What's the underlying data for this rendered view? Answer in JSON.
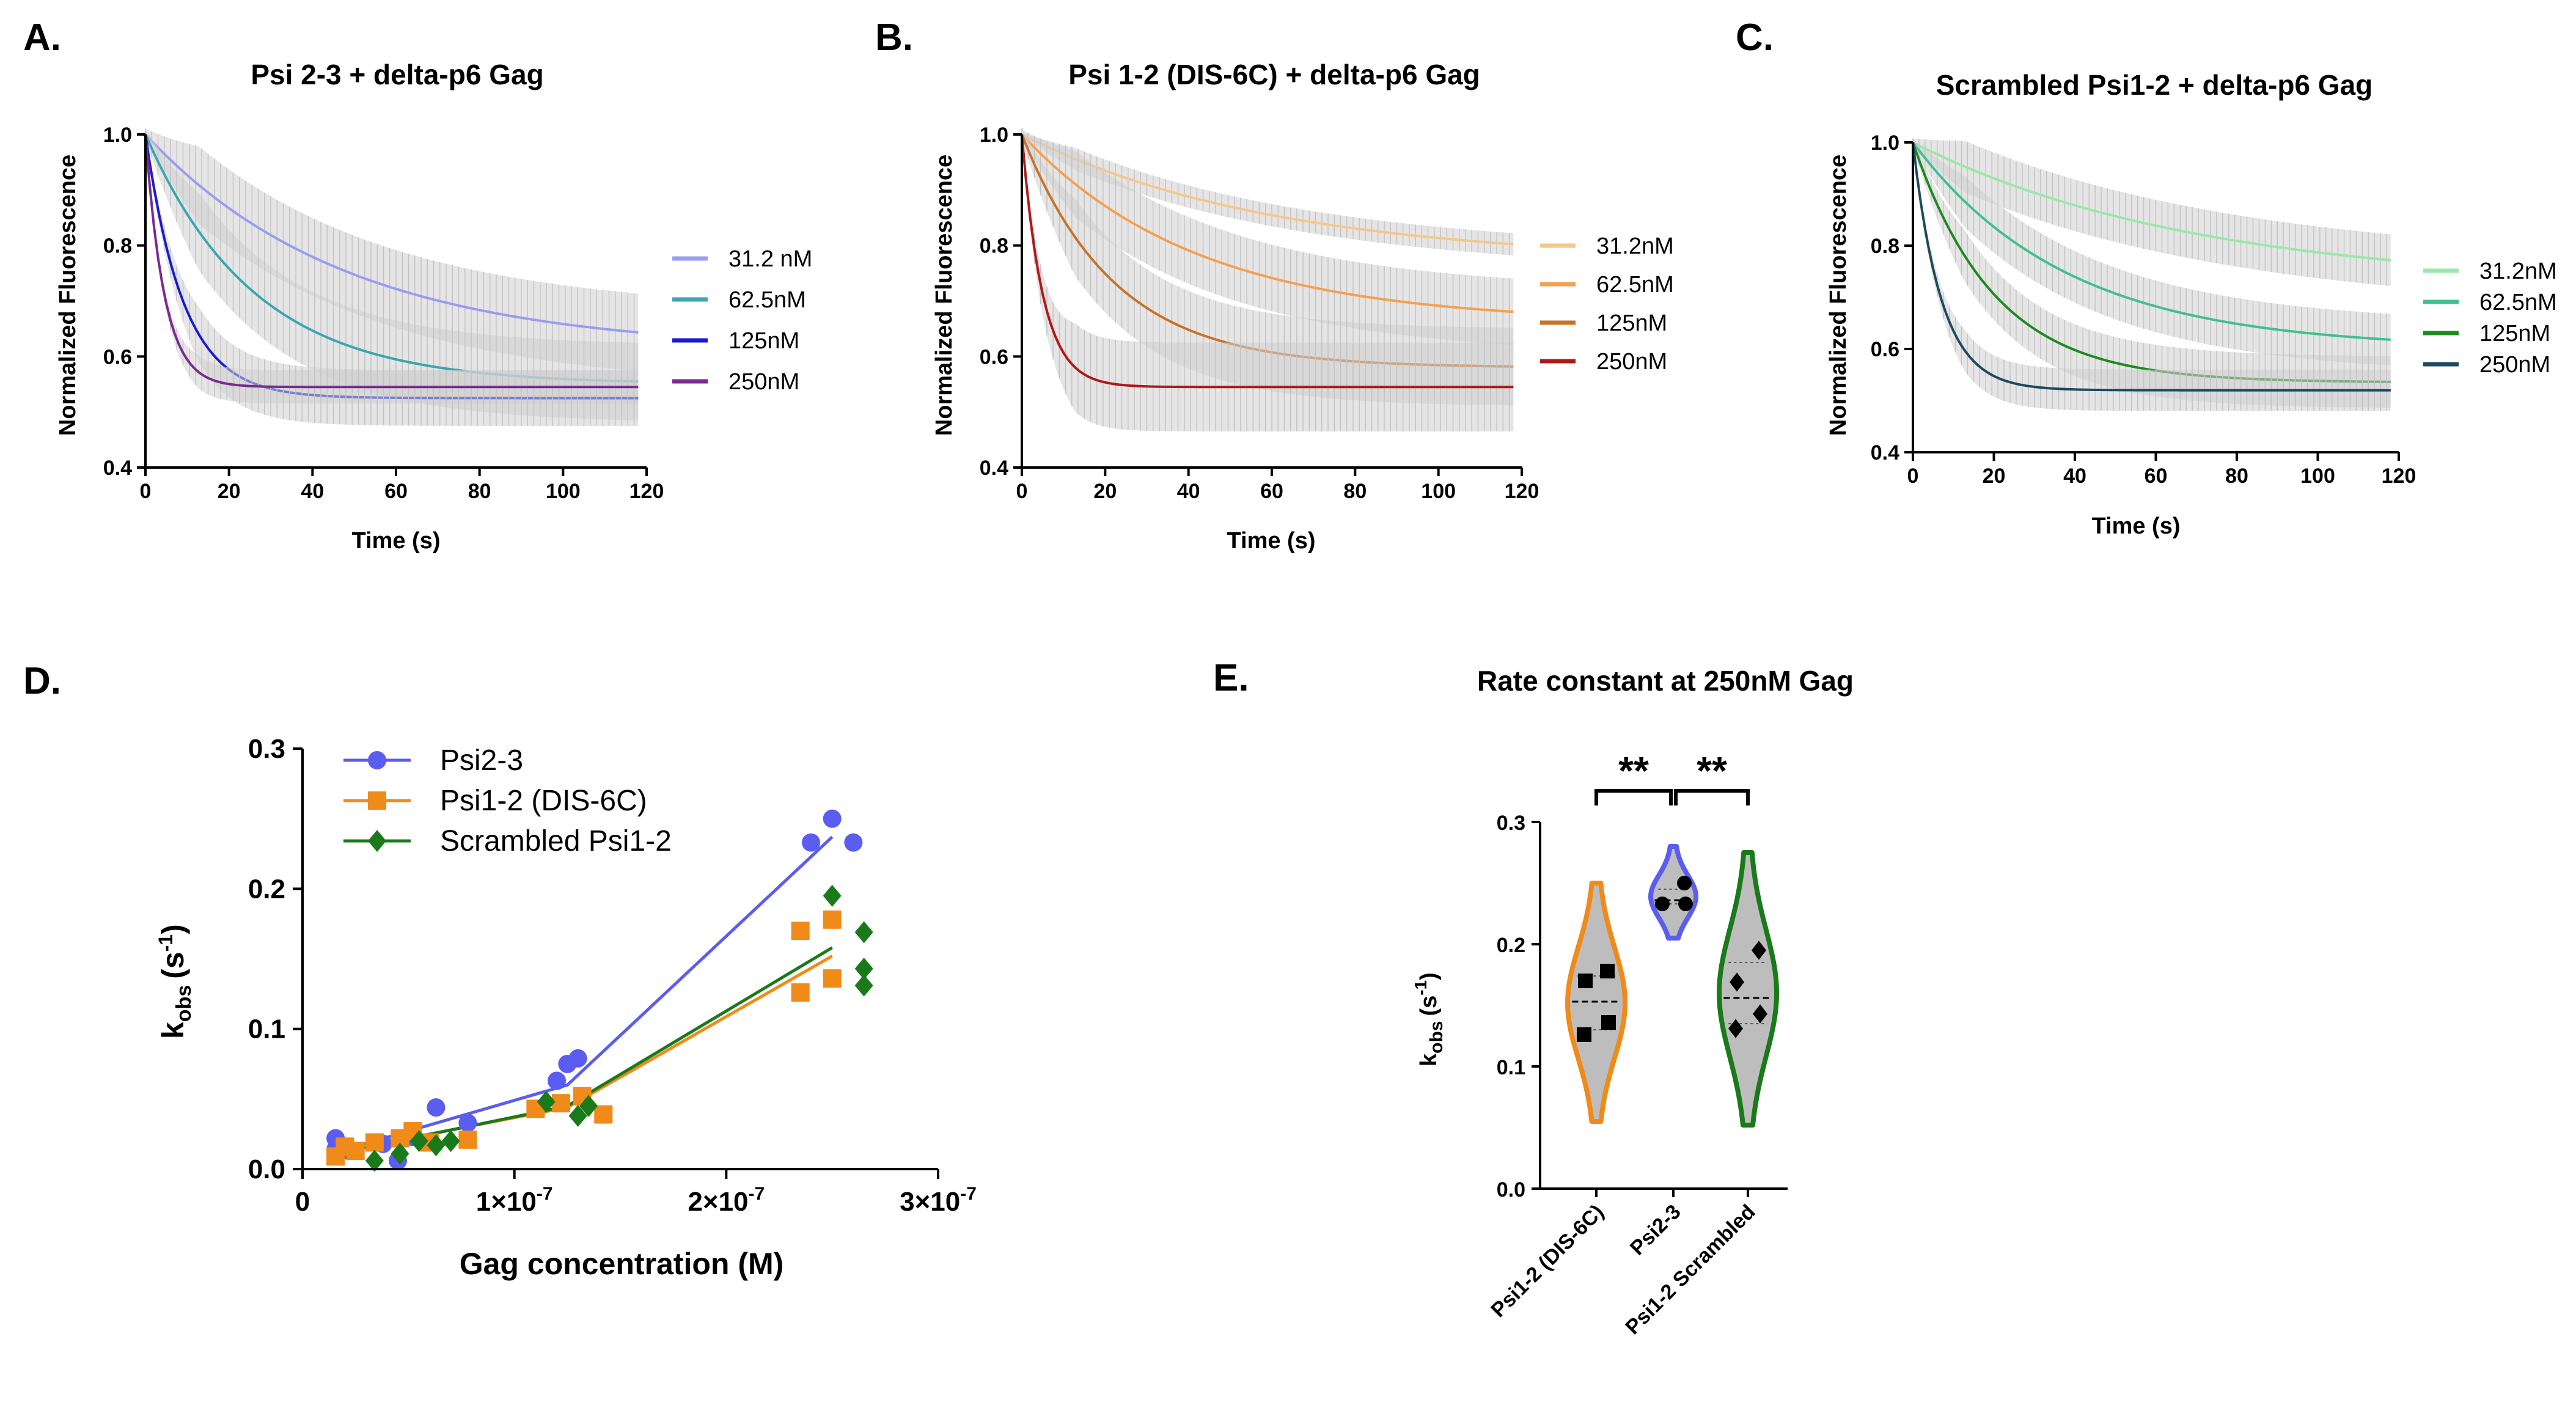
{
  "chart_data": [
    {
      "id": "A",
      "type": "line",
      "panel_label": "A.",
      "title": "Psi 2-3 + delta-p6 Gag",
      "xlabel": "Time (s)",
      "ylabel": "Normalized Fluorescence",
      "xlim": [
        0,
        120
      ],
      "ylim": [
        0.4,
        1.0
      ],
      "xticks": [
        "0",
        "20",
        "40",
        "60",
        "80",
        "100",
        "120"
      ],
      "yticks": [
        "0.4",
        "0.6",
        "0.8",
        "1.0"
      ],
      "series": [
        {
          "name": "31.2 nM",
          "color": "#9a9cf0",
          "end": 0.61,
          "tau": 48,
          "err": 0.07
        },
        {
          "name": "62.5nM",
          "color": "#3aa6b0",
          "end": 0.55,
          "tau": 26,
          "err": 0.07
        },
        {
          "name": "125nM",
          "color": "#1a1ad0",
          "end": 0.525,
          "tau": 9,
          "err": 0.05
        },
        {
          "name": "250nM",
          "color": "#7a2a90",
          "end": 0.545,
          "tau": 4.5,
          "err": 0.03
        }
      ]
    },
    {
      "id": "B",
      "type": "line",
      "panel_label": "B.",
      "title": "Psi 1-2 (DIS-6C) + delta-p6 Gag",
      "xlabel": "Time (s)",
      "ylabel": "Normalized Fluorescence",
      "xlim": [
        0,
        120
      ],
      "ylim": [
        0.4,
        1.0
      ],
      "xticks": [
        "0",
        "20",
        "40",
        "60",
        "80",
        "100",
        "120"
      ],
      "yticks": [
        "0.4",
        "0.6",
        "0.8",
        "1.0"
      ],
      "series": [
        {
          "name": "31.2nM",
          "color": "#f3c88e",
          "end": 0.77,
          "tau": 60,
          "err": 0.02
        },
        {
          "name": "62.5nM",
          "color": "#f5a050",
          "end": 0.66,
          "tau": 42,
          "err": 0.06
        },
        {
          "name": "125nM",
          "color": "#c8722a",
          "end": 0.58,
          "tau": 22,
          "err": 0.07
        },
        {
          "name": "250nM",
          "color": "#b01818",
          "end": 0.545,
          "tau": 5,
          "err": 0.08
        }
      ]
    },
    {
      "id": "C",
      "type": "line",
      "panel_label": "C.",
      "title": "Scrambled Psi1-2 + delta-p6 Gag",
      "xlabel": "Time (s)",
      "ylabel": "Normalized Fluorescence",
      "xlim": [
        0,
        120
      ],
      "ylim": [
        0.4,
        1.0
      ],
      "xticks": [
        "0",
        "20",
        "40",
        "60",
        "80",
        "100",
        "120"
      ],
      "yticks": [
        "0.4",
        "0.6",
        "0.8",
        "1.0"
      ],
      "series": [
        {
          "name": "31.2nM",
          "color": "#9ae8a8",
          "end": 0.72,
          "tau": 70,
          "err": 0.05
        },
        {
          "name": "62.5nM",
          "color": "#40c090",
          "end": 0.6,
          "tau": 38,
          "err": 0.05
        },
        {
          "name": "125nM",
          "color": "#1d8a1d",
          "end": 0.535,
          "tau": 20,
          "err": 0.05
        },
        {
          "name": "250nM",
          "color": "#1c4a60",
          "end": 0.52,
          "tau": 7,
          "err": 0.04
        }
      ]
    },
    {
      "id": "D",
      "type": "scatter",
      "panel_label": "D.",
      "title": "",
      "xlabel": "Gag concentration (M)",
      "ylabel_main": "k",
      "ylabel_sub": "obs",
      "ylabel_unit": "(s",
      "ylabel_sup": "-1",
      "ylabel_close": ")",
      "xlim": [
        0,
        3e-07
      ],
      "ylim": [
        0,
        0.3
      ],
      "xticks": [
        "0",
        "1×10",
        "2×10",
        "3×10"
      ],
      "xtick_exp": "-7",
      "yticks": [
        "0.0",
        "0.1",
        "0.2",
        "0.3"
      ],
      "legend_placement": "top-left",
      "series": [
        {
          "name": "Psi2-3",
          "color": "#5b5cf0",
          "marker": "circle",
          "x": [
            1.56e-08,
            1.56e-08,
            2.2e-08,
            3.8e-08,
            4.5e-08,
            5.2e-08,
            6.3e-08,
            7.8e-08,
            1.2e-07,
            1.25e-07,
            1.3e-07,
            2.4e-07,
            2.5e-07,
            2.6e-07
          ],
          "y": [
            0.022,
            0.014,
            0.013,
            0.018,
            0.006,
            0.023,
            0.044,
            0.033,
            0.063,
            0.075,
            0.079,
            0.233,
            0.25,
            0.233
          ],
          "fit": [
            [
              1.56e-08,
              0.012
            ],
            [
              1.25e-07,
              0.06
            ],
            [
              2.5e-07,
              0.237
            ]
          ]
        },
        {
          "name": "Psi1-2 (DIS-6C)",
          "color": "#f08a18",
          "marker": "square",
          "x": [
            1.56e-08,
            2e-08,
            2.5e-08,
            3.4e-08,
            4.6e-08,
            5.2e-08,
            6e-08,
            7.8e-08,
            1.1e-07,
            1.22e-07,
            1.32e-07,
            1.42e-07,
            2.35e-07,
            2.35e-07,
            2.5e-07,
            2.5e-07
          ],
          "y": [
            0.009,
            0.016,
            0.013,
            0.019,
            0.022,
            0.027,
            0.019,
            0.021,
            0.043,
            0.047,
            0.052,
            0.039,
            0.17,
            0.126,
            0.178,
            0.136
          ],
          "fit": [
            [
              1.56e-08,
              0.012
            ],
            [
              1.25e-07,
              0.044
            ],
            [
              2.5e-07,
              0.152
            ]
          ]
        },
        {
          "name": "Scrambled Psi1-2",
          "color": "#1a7a1a",
          "marker": "diamond",
          "x": [
            3.4e-08,
            4.6e-08,
            5.5e-08,
            6.3e-08,
            7e-08,
            1.15e-07,
            1.3e-07,
            1.35e-07,
            2.5e-07,
            2.65e-07,
            2.65e-07,
            2.65e-07
          ],
          "y": [
            0.006,
            0.011,
            0.02,
            0.017,
            0.02,
            0.048,
            0.038,
            0.045,
            0.195,
            0.169,
            0.143,
            0.131
          ],
          "fit": [
            [
              1.56e-08,
              0.011
            ],
            [
              1.25e-07,
              0.045
            ],
            [
              2.5e-07,
              0.158
            ]
          ]
        }
      ]
    },
    {
      "id": "E",
      "type": "violin",
      "panel_label": "E.",
      "title": "Rate constant at 250nM Gag",
      "ylabel_main": "k",
      "ylabel_sub": "obs",
      "ylabel_unit": "(s",
      "ylabel_sup": "-1",
      "ylabel_close": ")",
      "ylim": [
        0,
        0.3
      ],
      "yticks": [
        "0.0",
        "0.1",
        "0.2",
        "0.3"
      ],
      "categories": [
        "Psi1-2 (DIS-6C)",
        "Psi2-3",
        "Psi1-2 Scrambled"
      ],
      "groups": [
        {
          "name": "Psi1-2 (DIS-6C)",
          "color": "#f08a18",
          "marker": "square",
          "values": [
            0.178,
            0.17,
            0.136,
            0.126
          ],
          "min": 0.055,
          "max": 0.25,
          "median": 0.153,
          "q1": 0.13,
          "q3": 0.174
        },
        {
          "name": "Psi2-3",
          "color": "#5b5cf0",
          "marker": "circle",
          "values": [
            0.25,
            0.233,
            0.233
          ],
          "min": 0.205,
          "max": 0.28,
          "median": 0.236,
          "q1": 0.233,
          "q3": 0.245
        },
        {
          "name": "Psi1-2 Scrambled",
          "color": "#1a7a1a",
          "marker": "diamond",
          "values": [
            0.195,
            0.169,
            0.143,
            0.131
          ],
          "min": 0.052,
          "max": 0.275,
          "median": 0.156,
          "q1": 0.135,
          "q3": 0.185
        }
      ],
      "significance": [
        {
          "pair": [
            0,
            1
          ],
          "label": "**"
        },
        {
          "pair": [
            1,
            2
          ],
          "label": "**"
        }
      ]
    }
  ]
}
